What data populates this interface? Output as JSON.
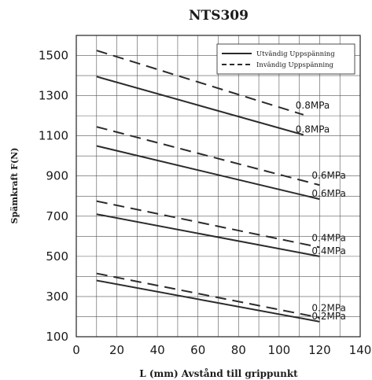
{
  "chart_data": {
    "type": "line",
    "title": "NTS309",
    "xlabel": "L (mm) Avstånd till grippunkt",
    "ylabel": "Spämkraft F(N)",
    "xlim": [
      0,
      140
    ],
    "ylim": [
      100,
      1600
    ],
    "xticks": [
      "0",
      "20",
      "40",
      "60",
      "80",
      "100",
      "120",
      "140"
    ],
    "yticks": [
      "100",
      "300",
      "500",
      "700",
      "900",
      "1100",
      "1300",
      "1500"
    ],
    "xtick_values": [
      0,
      20,
      40,
      60,
      80,
      100,
      120,
      140
    ],
    "ytick_values": [
      100,
      300,
      500,
      700,
      900,
      1100,
      1300,
      1500
    ],
    "x_minor_step": 10,
    "y_minor_step": 100,
    "grid": true,
    "legend": {
      "position": "top-right",
      "entries": [
        {
          "label": "Utvändig Uppspänning",
          "style": "solid"
        },
        {
          "label": "Invändig Uppspänning",
          "style": "dashed"
        }
      ]
    },
    "series": [
      {
        "group": "Utvändig Uppspänning",
        "style": "solid",
        "label": "0.8MPa",
        "x": [
          10,
          112
        ],
        "y": [
          1395,
          1105
        ]
      },
      {
        "group": "Invändig Uppspänning",
        "style": "dashed",
        "label": "0.8MPa",
        "x": [
          10,
          112
        ],
        "y": [
          1525,
          1205
        ]
      },
      {
        "group": "Utvändig Uppspänning",
        "style": "solid",
        "label": "0.6MPa",
        "x": [
          10,
          120
        ],
        "y": [
          1050,
          785
        ]
      },
      {
        "group": "Invändig Uppspänning",
        "style": "dashed",
        "label": "0.6MPa",
        "x": [
          10,
          120
        ],
        "y": [
          1145,
          855
        ]
      },
      {
        "group": "Utvändig Uppspänning",
        "style": "solid",
        "label": "0.4MPa",
        "x": [
          10,
          120
        ],
        "y": [
          710,
          500
        ]
      },
      {
        "group": "Invändig Uppspänning",
        "style": "dashed",
        "label": "0.4MPa",
        "x": [
          10,
          120
        ],
        "y": [
          775,
          545
        ]
      },
      {
        "group": "Utvändig Uppspänning",
        "style": "solid",
        "label": "0.2MPa",
        "x": [
          10,
          120
        ],
        "y": [
          380,
          175
        ]
      },
      {
        "group": "Invändig Uppspänning",
        "style": "dashed",
        "label": "0.2MPa",
        "x": [
          10,
          120
        ],
        "y": [
          415,
          195
        ]
      }
    ],
    "colors": {
      "line": "#2b2b2b",
      "grid": "#555555",
      "axis": "#222222",
      "text": "#1a1a1a"
    }
  }
}
